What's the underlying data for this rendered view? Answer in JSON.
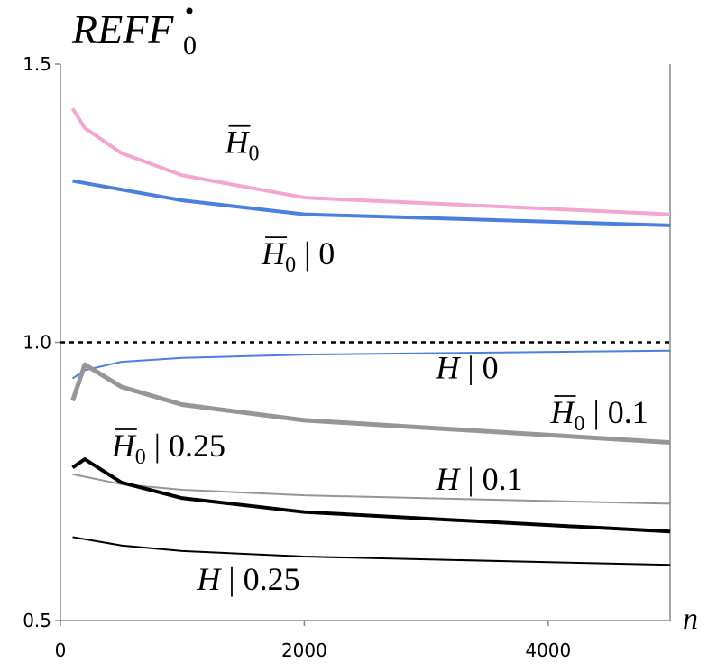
{
  "chart_data": {
    "type": "line",
    "title": "REFF",
    "title_subscript": "0",
    "xlabel": "n",
    "ylabel": "",
    "xlim": [
      0,
      5000
    ],
    "ylim": [
      0.5,
      1.5
    ],
    "x_ticks": [
      0,
      2000,
      4000
    ],
    "x_tick_labels": [
      "0",
      "2000",
      "4000"
    ],
    "y_ticks": [
      0.5,
      1.0,
      1.5
    ],
    "y_tick_labels": [
      "0.5",
      "1.0",
      "1.5"
    ],
    "grid": false,
    "legend": "none",
    "reference_line": {
      "y": 1.0,
      "style": "dotted",
      "color": "#000000"
    },
    "series": [
      {
        "color": "#f4a6d0",
        "width": 4,
        "x": [
          100,
          200,
          500,
          1000,
          2000,
          5000
        ],
        "y": [
          1.42,
          1.385,
          1.34,
          1.3,
          1.26,
          1.23
        ]
      },
      {
        "color": "#4a7fe0",
        "width": 4,
        "x": [
          100,
          1000,
          2000,
          5000
        ],
        "y": [
          1.29,
          1.255,
          1.23,
          1.21
        ]
      },
      {
        "color": "#4a7fe0",
        "width": 2,
        "x": [
          100,
          200,
          500,
          1000,
          2000,
          5000
        ],
        "y": [
          0.935,
          0.95,
          0.965,
          0.972,
          0.978,
          0.985
        ]
      },
      {
        "color": "#969696",
        "width": 5,
        "x": [
          100,
          200,
          500,
          1000,
          2000,
          5000
        ],
        "y": [
          0.895,
          0.96,
          0.92,
          0.888,
          0.86,
          0.82
        ]
      },
      {
        "color": "#969696",
        "width": 2,
        "x": [
          100,
          500,
          1000,
          2000,
          5000
        ],
        "y": [
          0.763,
          0.745,
          0.735,
          0.725,
          0.71
        ]
      },
      {
        "color": "#000000",
        "width": 4,
        "x": [
          100,
          200,
          500,
          1000,
          2000,
          5000
        ],
        "y": [
          0.775,
          0.79,
          0.748,
          0.72,
          0.695,
          0.66
        ]
      },
      {
        "color": "#000000",
        "width": 2,
        "x": [
          100,
          500,
          1000,
          2000,
          5000
        ],
        "y": [
          0.65,
          0.635,
          0.625,
          0.615,
          0.6
        ]
      }
    ],
    "annotations": [
      {
        "text": "H",
        "overbar": true,
        "sub": "0",
        "tail": "",
        "at": [
          1350,
          1.34
        ]
      },
      {
        "text": "H",
        "overbar": true,
        "sub": "0",
        "tail": " | 0",
        "at": [
          1650,
          1.14
        ]
      },
      {
        "text": "H",
        "overbar": false,
        "sub": "",
        "tail": " | 0",
        "at": [
          3080,
          0.935
        ]
      },
      {
        "text": "H",
        "overbar": true,
        "sub": "0",
        "tail": " | 0.1",
        "at": [
          4020,
          0.855
        ]
      },
      {
        "text": "H",
        "overbar": true,
        "sub": "0",
        "tail": " | 0.25",
        "at": [
          420,
          0.795
        ]
      },
      {
        "text": "H",
        "overbar": false,
        "sub": "",
        "tail": " | 0.1",
        "at": [
          3080,
          0.735
        ]
      },
      {
        "text": "H",
        "overbar": false,
        "sub": "",
        "tail": " | 0.25",
        "at": [
          1120,
          0.555
        ]
      }
    ]
  }
}
